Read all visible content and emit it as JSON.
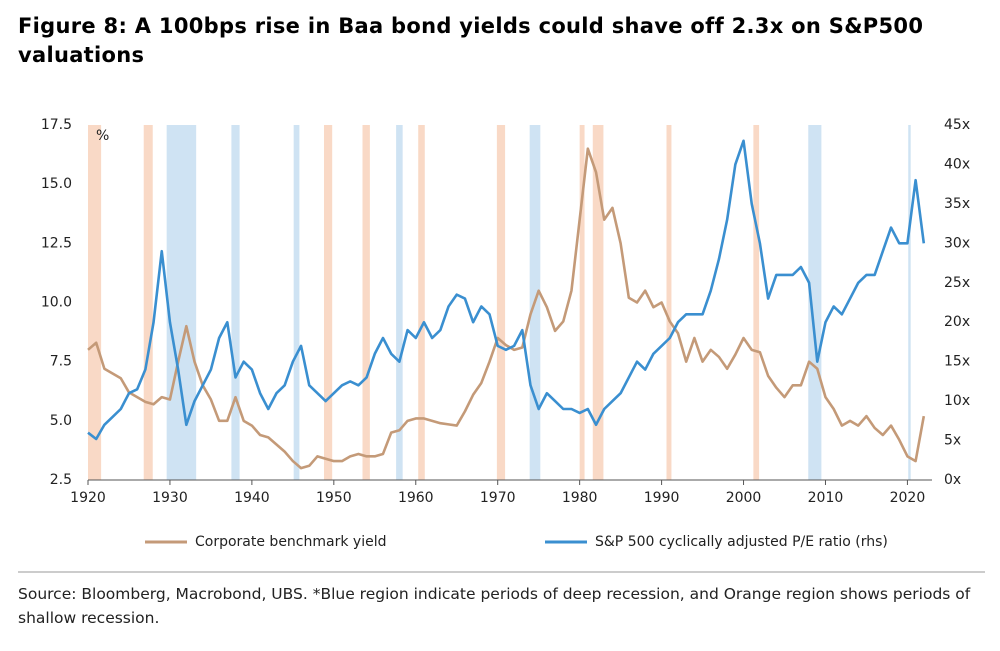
{
  "chart_data": {
    "type": "line",
    "title": "Figure 8: A 100bps rise in Baa bond yields could shave off 2.3x on S&P500 valuations",
    "y_unit": "%",
    "source": "Source: Bloomberg, Macrobond, UBS. *Blue region indicate periods of deep recession, and Orange region shows periods of shallow recession.",
    "xlim": [
      1920,
      2023
    ],
    "xticks": [
      1920,
      1930,
      1940,
      1950,
      1960,
      1970,
      1980,
      1990,
      2000,
      2010,
      2020
    ],
    "ylim": [
      2.5,
      17.5
    ],
    "yticks": [
      2.5,
      {
        "value": 5,
        "label": "5.0"
      },
      7.5,
      {
        "value": 10,
        "label": "10.0"
      },
      12.5,
      {
        "value": 15,
        "label": "15.0"
      },
      17.5
    ],
    "y2lim": [
      0,
      45
    ],
    "y2ticks": [
      {
        "value": 0,
        "label": "0x"
      },
      {
        "value": 5,
        "label": "5x"
      },
      {
        "value": 10,
        "label": "10x"
      },
      {
        "value": 15,
        "label": "15x"
      },
      {
        "value": 20,
        "label": "20x"
      },
      {
        "value": 25,
        "label": "25x"
      },
      {
        "value": 30,
        "label": "30x"
      },
      {
        "value": 35,
        "label": "35x"
      },
      {
        "value": 40,
        "label": "40x"
      },
      {
        "value": 45,
        "label": "45x"
      }
    ],
    "grid": false,
    "legend": "bottom",
    "bands": [
      {
        "x": [
          1920,
          1921.6
        ],
        "color": "#f9d9c6"
      },
      {
        "x": [
          1926.8,
          1927.9
        ],
        "color": "#f9d9c6"
      },
      {
        "x": [
          1948.8,
          1949.8
        ],
        "color": "#f9d9c6"
      },
      {
        "x": [
          1953.5,
          1954.4
        ],
        "color": "#f9d9c6"
      },
      {
        "x": [
          1960.3,
          1961.1
        ],
        "color": "#f9d9c6"
      },
      {
        "x": [
          1969.9,
          1970.9
        ],
        "color": "#f9d9c6"
      },
      {
        "x": [
          1980,
          1980.6
        ],
        "color": "#f9d9c6"
      },
      {
        "x": [
          1981.6,
          1982.9
        ],
        "color": "#f9d9c6"
      },
      {
        "x": [
          1990.6,
          1991.2
        ],
        "color": "#f9d9c6"
      },
      {
        "x": [
          2001.2,
          2001.9
        ],
        "color": "#f9d9c6"
      },
      {
        "x": [
          1929.6,
          1933.2
        ],
        "color": "#cfe3f3"
      },
      {
        "x": [
          1937.5,
          1938.5
        ],
        "color": "#cfe3f3"
      },
      {
        "x": [
          1945.1,
          1945.8
        ],
        "color": "#cfe3f3"
      },
      {
        "x": [
          1957.6,
          1958.4
        ],
        "color": "#cfe3f3"
      },
      {
        "x": [
          1973.9,
          1975.2
        ],
        "color": "#cfe3f3"
      },
      {
        "x": [
          2007.9,
          2009.5
        ],
        "color": "#cfe3f3"
      },
      {
        "x": [
          2020.1,
          2020.4
        ],
        "color": "#cfe3f3"
      }
    ],
    "x": [
      1920,
      1921,
      1922,
      1923,
      1924,
      1925,
      1926,
      1927,
      1928,
      1929,
      1930,
      1931,
      1932,
      1933,
      1934,
      1935,
      1936,
      1937,
      1938,
      1939,
      1940,
      1941,
      1942,
      1943,
      1944,
      1945,
      1946,
      1947,
      1948,
      1949,
      1950,
      1951,
      1952,
      1953,
      1954,
      1955,
      1956,
      1957,
      1958,
      1959,
      1960,
      1961,
      1962,
      1963,
      1964,
      1965,
      1966,
      1967,
      1968,
      1969,
      1970,
      1971,
      1972,
      1973,
      1974,
      1975,
      1976,
      1977,
      1978,
      1979,
      1980,
      1981,
      1982,
      1983,
      1984,
      1985,
      1986,
      1987,
      1988,
      1989,
      1990,
      1991,
      1992,
      1993,
      1994,
      1995,
      1996,
      1997,
      1998,
      1999,
      2000,
      2001,
      2002,
      2003,
      2004,
      2005,
      2006,
      2007,
      2008,
      2009,
      2010,
      2011,
      2012,
      2013,
      2014,
      2015,
      2016,
      2017,
      2018,
      2019,
      2020,
      2021,
      2022
    ],
    "series": [
      {
        "name": "Corporate benchmark yield",
        "color": "#c49a78",
        "values": [
          8,
          8.3,
          7.2,
          7,
          6.8,
          6.2,
          6,
          5.8,
          5.7,
          6,
          5.9,
          7.5,
          9,
          7.5,
          6.5,
          5.9,
          5,
          5,
          6,
          5,
          4.8,
          4.4,
          4.3,
          4,
          3.7,
          3.3,
          3,
          3.1,
          3.5,
          3.4,
          3.3,
          3.3,
          3.5,
          3.6,
          3.5,
          3.5,
          3.6,
          4.5,
          4.6,
          5,
          5.1,
          5.1,
          5,
          4.9,
          4.85,
          4.8,
          5.4,
          6.1,
          6.6,
          7.5,
          8.5,
          8.2,
          8,
          8.1,
          9.5,
          10.5,
          9.8,
          8.8,
          9.2,
          10.5,
          13.5,
          16.5,
          15.5,
          13.5,
          14,
          12.5,
          10.2,
          10,
          10.5,
          9.8,
          10,
          9.2,
          8.7,
          7.5,
          8.5,
          7.5,
          8,
          7.7,
          7.2,
          7.8,
          8.5,
          8,
          7.9,
          6.9,
          6.4,
          6,
          6.5,
          6.5,
          7.5,
          7.2,
          6,
          5.5,
          4.8,
          5,
          4.8,
          5.2,
          4.7,
          4.4,
          4.8,
          4.2,
          3.5,
          3.3,
          5.2
        ]
      },
      {
        "name": "S&P 500 cyclically adjusted P/E ratio (rhs)",
        "color": "#3a8fd0",
        "axis": "y2",
        "values": [
          6,
          5.2,
          7,
          8,
          9,
          11,
          11.5,
          14,
          20,
          29,
          20,
          14,
          7,
          10,
          12,
          14,
          18,
          20,
          13,
          15,
          14,
          11,
          9,
          11,
          12,
          15,
          17,
          12,
          11,
          10,
          11,
          12,
          12.5,
          12,
          13,
          16,
          18,
          16,
          15,
          19,
          18,
          20,
          18,
          19,
          22,
          23.5,
          23,
          20,
          22,
          21,
          17,
          16.5,
          17,
          19,
          12,
          9,
          11,
          10,
          9,
          9,
          8.5,
          9,
          7,
          9,
          10,
          11,
          13,
          15,
          14,
          16,
          17,
          18,
          20,
          21,
          21,
          21,
          24,
          28,
          33,
          40,
          43,
          35,
          30,
          23,
          26,
          26,
          26,
          27,
          25,
          15,
          20,
          22,
          21,
          23,
          25,
          26,
          26,
          29,
          32,
          30,
          30,
          38,
          30
        ]
      }
    ]
  }
}
